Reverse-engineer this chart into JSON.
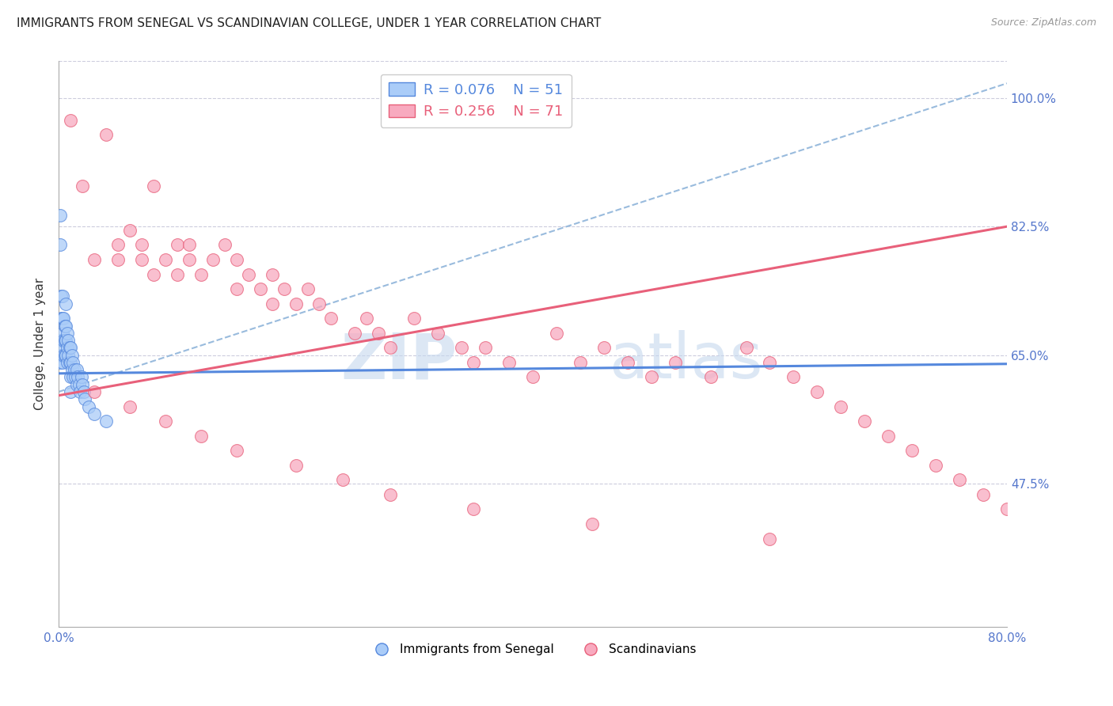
{
  "title": "IMMIGRANTS FROM SENEGAL VS SCANDINAVIAN COLLEGE, UNDER 1 YEAR CORRELATION CHART",
  "source": "Source: ZipAtlas.com",
  "ylabel": "College, Under 1 year",
  "xmin": 0.0,
  "xmax": 0.8,
  "ymin": 0.28,
  "ymax": 1.05,
  "legend_r1": "R = 0.076",
  "legend_n1": "N = 51",
  "legend_r2": "R = 0.256",
  "legend_n2": "N = 71",
  "label1": "Immigrants from Senegal",
  "label2": "Scandinavians",
  "color1": "#aaccf8",
  "color2": "#f8aabf",
  "line_color1": "#5588dd",
  "line_color2": "#e8607a",
  "dashed_color": "#99bbdd",
  "blue_line_x0": 0.0,
  "blue_line_y0": 0.625,
  "blue_line_x1": 0.8,
  "blue_line_y1": 0.638,
  "pink_line_x0": 0.0,
  "pink_line_y0": 0.595,
  "pink_line_x1": 0.8,
  "pink_line_y1": 0.825,
  "dash_line_x0": 0.0,
  "dash_line_y0": 0.6,
  "dash_line_x1": 0.8,
  "dash_line_y1": 1.02,
  "scatter1_x": [
    0.001,
    0.001,
    0.001,
    0.002,
    0.002,
    0.002,
    0.002,
    0.003,
    0.003,
    0.003,
    0.003,
    0.003,
    0.004,
    0.004,
    0.004,
    0.005,
    0.005,
    0.005,
    0.006,
    0.006,
    0.006,
    0.006,
    0.007,
    0.007,
    0.007,
    0.008,
    0.008,
    0.009,
    0.009,
    0.01,
    0.01,
    0.01,
    0.01,
    0.011,
    0.011,
    0.012,
    0.012,
    0.013,
    0.014,
    0.015,
    0.015,
    0.016,
    0.017,
    0.018,
    0.019,
    0.02,
    0.021,
    0.022,
    0.025,
    0.03,
    0.04
  ],
  "scatter1_y": [
    0.84,
    0.8,
    0.64,
    0.73,
    0.7,
    0.67,
    0.65,
    0.73,
    0.7,
    0.68,
    0.66,
    0.64,
    0.7,
    0.67,
    0.65,
    0.69,
    0.67,
    0.65,
    0.72,
    0.69,
    0.67,
    0.65,
    0.68,
    0.66,
    0.64,
    0.67,
    0.65,
    0.66,
    0.64,
    0.66,
    0.64,
    0.62,
    0.6,
    0.65,
    0.63,
    0.64,
    0.62,
    0.63,
    0.62,
    0.63,
    0.61,
    0.62,
    0.61,
    0.6,
    0.62,
    0.61,
    0.6,
    0.59,
    0.58,
    0.57,
    0.56
  ],
  "scatter2_x": [
    0.01,
    0.02,
    0.03,
    0.04,
    0.05,
    0.05,
    0.06,
    0.07,
    0.07,
    0.08,
    0.08,
    0.09,
    0.1,
    0.1,
    0.11,
    0.11,
    0.12,
    0.13,
    0.14,
    0.15,
    0.15,
    0.16,
    0.17,
    0.18,
    0.18,
    0.19,
    0.2,
    0.21,
    0.22,
    0.23,
    0.25,
    0.26,
    0.27,
    0.28,
    0.3,
    0.32,
    0.34,
    0.35,
    0.36,
    0.38,
    0.4,
    0.42,
    0.44,
    0.46,
    0.48,
    0.5,
    0.52,
    0.55,
    0.58,
    0.6,
    0.62,
    0.64,
    0.66,
    0.68,
    0.7,
    0.72,
    0.74,
    0.76,
    0.78,
    0.8,
    0.03,
    0.06,
    0.09,
    0.12,
    0.15,
    0.2,
    0.24,
    0.28,
    0.35,
    0.45,
    0.6
  ],
  "scatter2_y": [
    0.97,
    0.88,
    0.78,
    0.95,
    0.8,
    0.78,
    0.82,
    0.8,
    0.78,
    0.76,
    0.88,
    0.78,
    0.8,
    0.76,
    0.8,
    0.78,
    0.76,
    0.78,
    0.8,
    0.78,
    0.74,
    0.76,
    0.74,
    0.72,
    0.76,
    0.74,
    0.72,
    0.74,
    0.72,
    0.7,
    0.68,
    0.7,
    0.68,
    0.66,
    0.7,
    0.68,
    0.66,
    0.64,
    0.66,
    0.64,
    0.62,
    0.68,
    0.64,
    0.66,
    0.64,
    0.62,
    0.64,
    0.62,
    0.66,
    0.64,
    0.62,
    0.6,
    0.58,
    0.56,
    0.54,
    0.52,
    0.5,
    0.48,
    0.46,
    0.44,
    0.6,
    0.58,
    0.56,
    0.54,
    0.52,
    0.5,
    0.48,
    0.46,
    0.44,
    0.42,
    0.4
  ],
  "title_fontsize": 11,
  "source_fontsize": 9,
  "axis_label_fontsize": 11,
  "tick_fontsize": 11,
  "legend_fontsize": 13,
  "watermark_zip": "ZIP",
  "watermark_atlas": "atlas",
  "background_color": "#ffffff"
}
